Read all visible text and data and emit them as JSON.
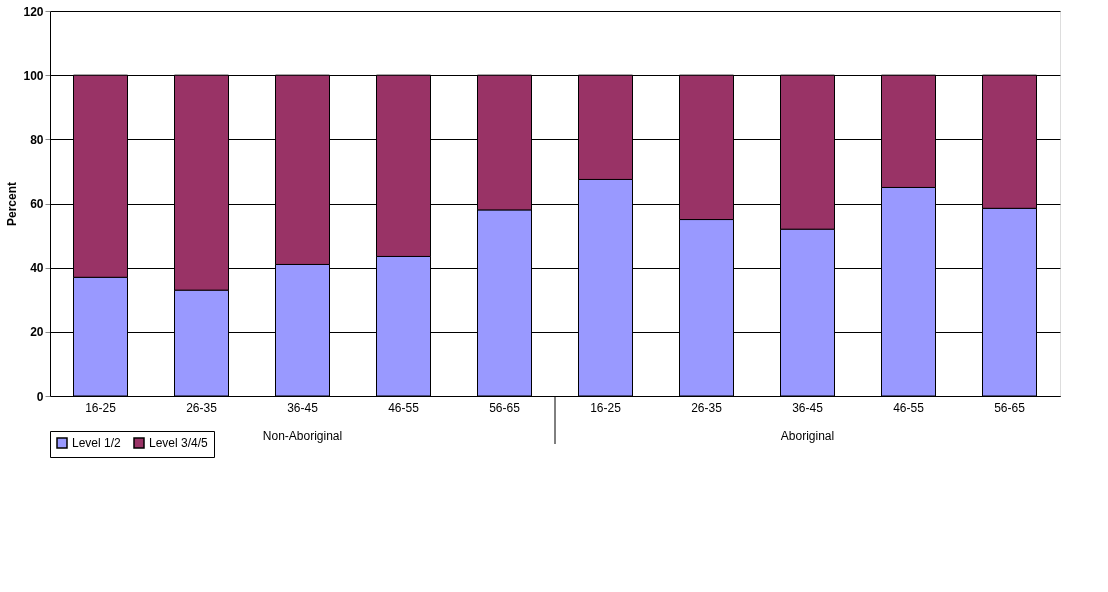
{
  "chart_data": {
    "type": "bar",
    "stacked": true,
    "ylabel": "Percent",
    "categories": [
      "16-25",
      "26-35",
      "36-45",
      "46-55",
      "56-65",
      "16-25",
      "26-35",
      "36-45",
      "46-55",
      "56-65"
    ],
    "series": [
      {
        "name": "Level 1/2",
        "color": "#9999ff",
        "values": [
          37,
          33,
          41,
          43.5,
          58,
          67.5,
          55,
          52,
          65,
          58.5
        ]
      },
      {
        "name": "Level 3/4/5",
        "color": "#993366",
        "values": [
          63,
          67,
          59,
          56.5,
          42,
          32.5,
          45,
          48,
          35,
          41.5
        ]
      }
    ],
    "ylim": [
      0,
      120
    ],
    "yticks": [
      0,
      20,
      40,
      60,
      80,
      100,
      120
    ],
    "grid": "y",
    "legend": "bottom",
    "annotations": [
      "Non-Aboriginal",
      "Aboriginal"
    ]
  }
}
